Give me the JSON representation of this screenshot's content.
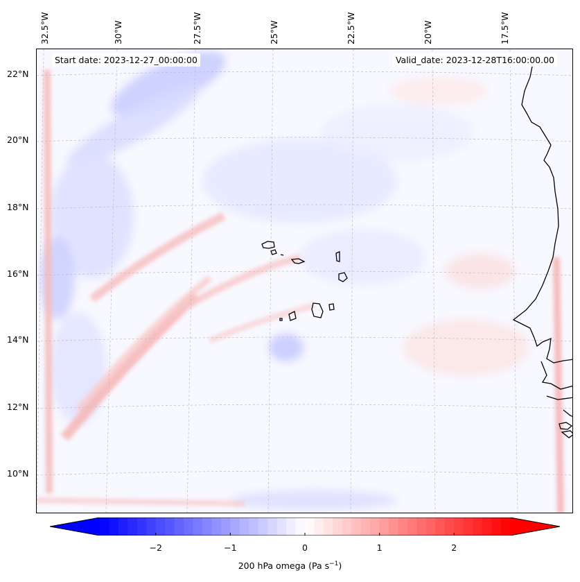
{
  "header": {
    "start_date": "Start date: 2023-12-27_00:00:00",
    "valid_date": "Valid_date: 2023-12-28T16:00:00.00"
  },
  "axes": {
    "lon_labels": [
      "32.5°W",
      "30°W",
      "27.5°W",
      "25°W",
      "22.5°W",
      "20°W",
      "17.5°W"
    ],
    "lat_labels": [
      "22°N",
      "20°N",
      "18°N",
      "16°N",
      "14°N",
      "12°N",
      "10°N"
    ]
  },
  "colorbar": {
    "label_main": "200 hPa omega (Pa s",
    "label_exp": "−1",
    "label_close": ")",
    "ticks": [
      "−2",
      "−1",
      "0",
      "1",
      "2"
    ],
    "vmin": -2.75,
    "vmax": 2.75,
    "low_color": "#0000ff",
    "mid_color": "#ffffff",
    "high_color": "#ff0000"
  },
  "colors": {
    "coastline": "#000000",
    "gridline": "#bbbbbb",
    "background_field": "#f8f8ff"
  }
}
